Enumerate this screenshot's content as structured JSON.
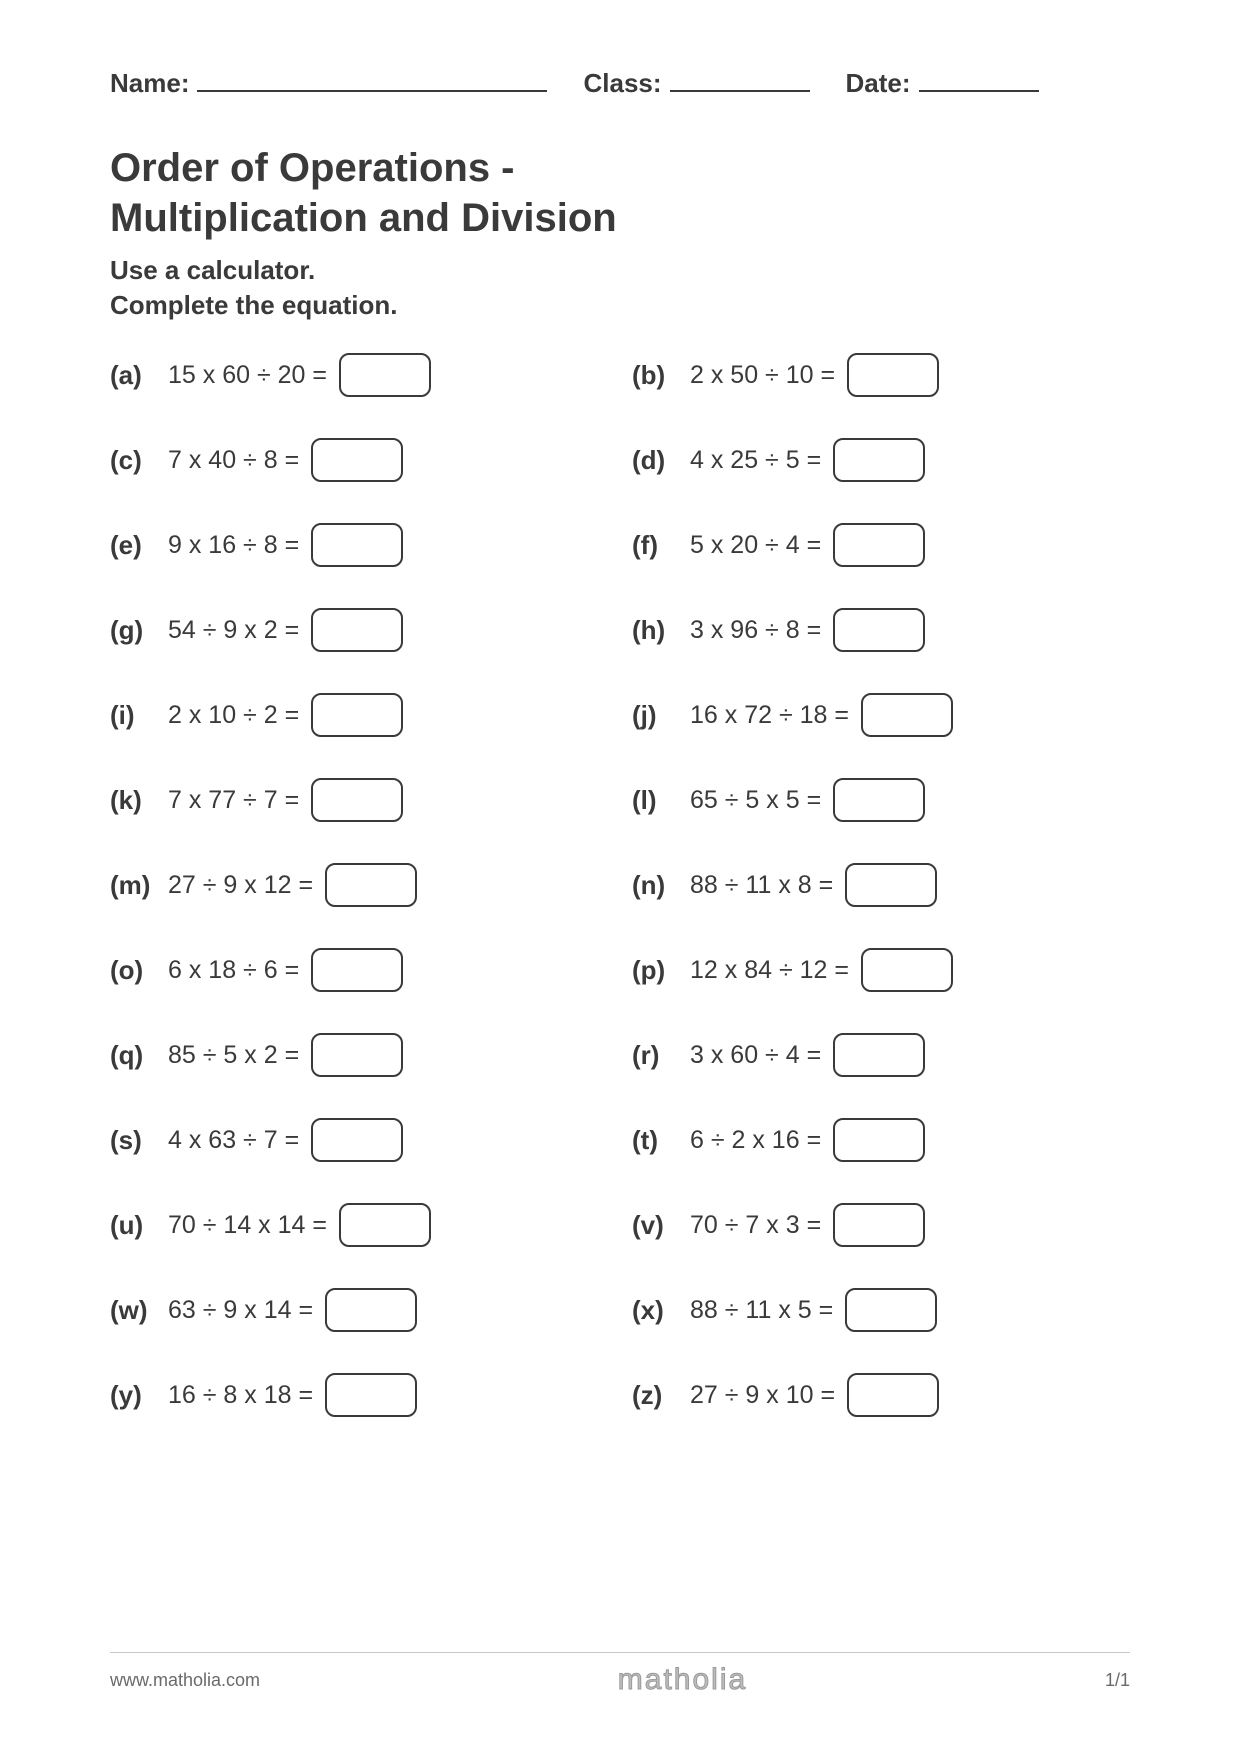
{
  "header": {
    "name_label": "Name:",
    "class_label": "Class:",
    "date_label": "Date:"
  },
  "title_line1": "Order of Operations -",
  "title_line2": "Multiplication and Division",
  "instruction_line1": "Use a calculator.",
  "instruction_line2": "Complete the equation.",
  "colors": {
    "text": "#3a3a3a",
    "background": "#ffffff",
    "rule": "#c8c8c8",
    "logo": "#bdbdbd"
  },
  "typography": {
    "title_fontsize": 40,
    "label_fontsize": 26,
    "expr_fontsize": 25,
    "footer_fontsize": 18
  },
  "answer_box": {
    "width": 92,
    "height": 44,
    "border_width": 2.5,
    "border_radius": 10,
    "border_color": "#3a3a3a"
  },
  "problems": [
    {
      "label": "(a)",
      "expr": "15 x 60 ÷ 20 ="
    },
    {
      "label": "(b)",
      "expr": "2 x 50 ÷ 10 ="
    },
    {
      "label": "(c)",
      "expr": "7 x 40 ÷ 8 ="
    },
    {
      "label": "(d)",
      "expr": "4 x 25 ÷ 5 ="
    },
    {
      "label": "(e)",
      "expr": "9 x 16 ÷ 8 ="
    },
    {
      "label": "(f)",
      "expr": "5 x 20 ÷ 4 ="
    },
    {
      "label": "(g)",
      "expr": "54 ÷ 9 x 2 ="
    },
    {
      "label": "(h)",
      "expr": "3 x 96 ÷ 8 ="
    },
    {
      "label": "(i)",
      "expr": "2 x 10 ÷ 2 ="
    },
    {
      "label": "(j)",
      "expr": "16 x 72 ÷ 18 ="
    },
    {
      "label": "(k)",
      "expr": "7 x 77 ÷ 7 ="
    },
    {
      "label": "(l)",
      "expr": "65 ÷ 5 x 5 ="
    },
    {
      "label": "(m)",
      "expr": "27 ÷ 9 x 12 ="
    },
    {
      "label": "(n)",
      "expr": "88 ÷ 11 x 8 ="
    },
    {
      "label": "(o)",
      "expr": "6 x 18 ÷ 6 ="
    },
    {
      "label": "(p)",
      "expr": "12 x 84 ÷ 12 ="
    },
    {
      "label": "(q)",
      "expr": "85 ÷ 5 x 2 ="
    },
    {
      "label": "(r)",
      "expr": "3 x 60 ÷ 4 ="
    },
    {
      "label": "(s)",
      "expr": "4 x 63 ÷ 7 ="
    },
    {
      "label": "(t)",
      "expr": "6 ÷ 2 x 16 ="
    },
    {
      "label": "(u)",
      "expr": "70 ÷ 14 x 14 ="
    },
    {
      "label": "(v)",
      "expr": "70 ÷ 7 x 3 ="
    },
    {
      "label": "(w)",
      "expr": "63 ÷ 9 x 14 ="
    },
    {
      "label": "(x)",
      "expr": "88 ÷ 11 x 5 ="
    },
    {
      "label": "(y)",
      "expr": "16 ÷ 8 x 18 ="
    },
    {
      "label": "(z)",
      "expr": "27 ÷ 9 x 10 ="
    }
  ],
  "footer": {
    "url": "www.matholia.com",
    "logo_text": "matholia",
    "page": "1/1"
  }
}
